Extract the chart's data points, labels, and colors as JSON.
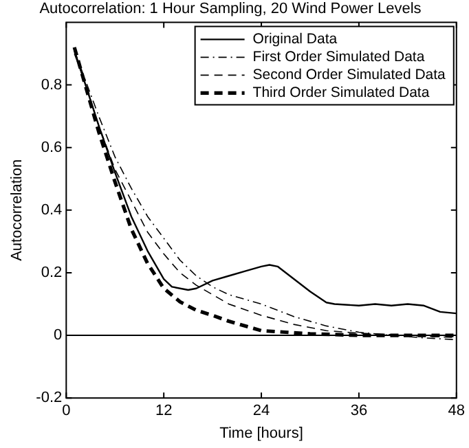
{
  "chart_data": {
    "type": "line",
    "title": "Autocorrelation: 1 Hour Sampling, 20 Wind Power Levels",
    "xlabel": "Time [hours]",
    "ylabel": "Autocorrelation",
    "xlim": [
      0,
      48
    ],
    "xticks": [
      0,
      12,
      24,
      36,
      48
    ],
    "ylim": [
      -0.2,
      1
    ],
    "yticks": [
      -0.2,
      0,
      0.2,
      0.4,
      0.6,
      0.8
    ],
    "grid": false,
    "legend": "top right",
    "marker": "none",
    "ref_lines": [
      {
        "axis": "y",
        "value": 0,
        "color": "#000000",
        "line_style": "solid"
      }
    ],
    "series": [
      {
        "name": "Original Data",
        "color": "#000000",
        "line_style": "solid",
        "x": [
          1,
          2,
          4,
          6,
          8,
          10,
          12,
          13,
          15,
          16,
          18,
          20,
          22,
          24,
          25,
          26,
          28,
          30,
          32,
          33,
          36,
          38,
          40,
          42,
          44,
          46,
          48
        ],
        "values": [
          0.91,
          0.83,
          0.67,
          0.52,
          0.38,
          0.27,
          0.18,
          0.155,
          0.145,
          0.15,
          0.175,
          0.19,
          0.205,
          0.22,
          0.225,
          0.22,
          0.18,
          0.14,
          0.105,
          0.1,
          0.095,
          0.1,
          0.095,
          0.1,
          0.095,
          0.075,
          0.07
        ]
      },
      {
        "name": "First Order Simulated Data",
        "color": "#000000",
        "line_style": "dashdot",
        "x": [
          1,
          2,
          4,
          6,
          8,
          10,
          12,
          14,
          16,
          18,
          20,
          24,
          28,
          32,
          36,
          40,
          44,
          48
        ],
        "values": [
          0.91,
          0.84,
          0.7,
          0.57,
          0.47,
          0.38,
          0.31,
          0.24,
          0.19,
          0.155,
          0.13,
          0.1,
          0.06,
          0.03,
          0.01,
          0,
          -0.008,
          -0.014
        ]
      },
      {
        "name": "Second Order Simulated Data",
        "color": "#000000",
        "line_style": "dashed",
        "x": [
          1,
          2,
          4,
          6,
          8,
          10,
          12,
          14,
          16,
          18,
          20,
          24,
          28,
          32,
          36,
          42,
          48
        ],
        "values": [
          0.9,
          0.83,
          0.67,
          0.53,
          0.43,
          0.33,
          0.26,
          0.2,
          0.16,
          0.13,
          0.1,
          0.064,
          0.035,
          0.015,
          0.007,
          0,
          -0.007
        ]
      },
      {
        "name": "Third Order Simulated Data",
        "color": "#000000",
        "line_style": "dashed",
        "x": [
          1,
          2,
          4,
          6,
          8,
          10,
          12,
          14,
          16,
          18,
          20,
          24,
          30,
          36,
          48
        ],
        "values": [
          0.92,
          0.83,
          0.65,
          0.49,
          0.34,
          0.23,
          0.15,
          0.107,
          0.08,
          0.064,
          0.045,
          0.015,
          0.005,
          0,
          0
        ]
      }
    ]
  }
}
